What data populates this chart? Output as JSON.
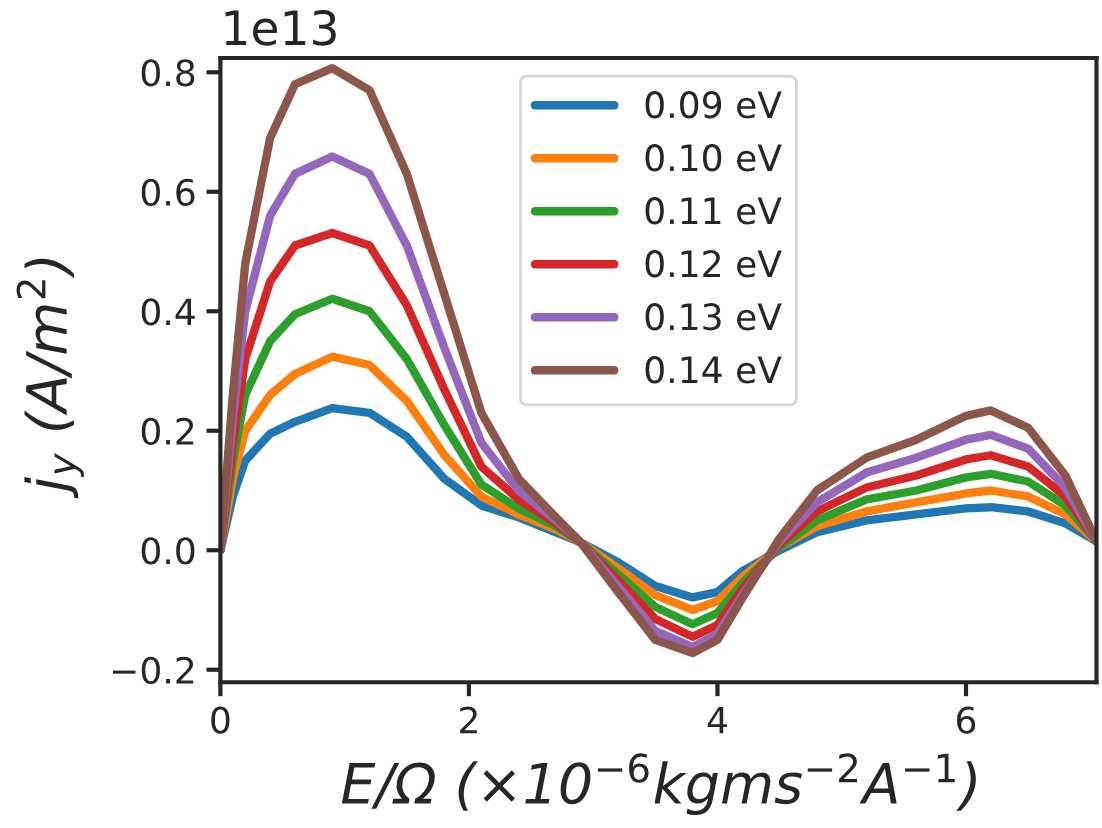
{
  "chart_data": {
    "type": "line",
    "xlabel": "E/Ω (×10$^{−6}$kgms$^{−2}$A$^{−1}$)",
    "ylabel": "j$_{y}$ (A/m$^{2}$)",
    "annotations": [
      "1e13"
    ],
    "x": [
      0,
      0.1,
      0.2,
      0.4,
      0.6,
      0.9,
      1.2,
      1.5,
      1.8,
      2.1,
      2.4,
      2.7,
      2.9,
      3.2,
      3.5,
      3.8,
      4.0,
      4.2,
      4.5,
      4.8,
      5.2,
      5.6,
      6.0,
      6.2,
      6.5,
      6.8,
      7.05
    ],
    "xlim": [
      0,
      7.05
    ],
    "xticks": [
      0,
      2,
      4,
      6
    ],
    "ylim": [
      -0.221,
      0.824
    ],
    "yticks": [
      {
        "value": -0.2,
        "label": "−0.2"
      },
      {
        "value": 0.0,
        "label": "0.0"
      },
      {
        "value": 0.2,
        "label": "0.2"
      },
      {
        "value": 0.4,
        "label": "0.4"
      },
      {
        "value": 0.6,
        "label": "0.6"
      },
      {
        "value": 0.8,
        "label": "0.8"
      }
    ],
    "grid": false,
    "legend": "top",
    "marker": "none",
    "line_style": "solid",
    "series": [
      {
        "name": "0.09 eV",
        "color": "#1f77b4",
        "values": [
          0,
          0.09,
          0.15,
          0.195,
          0.215,
          0.238,
          0.23,
          0.19,
          0.12,
          0.075,
          0.055,
          0.03,
          0.013,
          -0.02,
          -0.06,
          -0.079,
          -0.07,
          -0.035,
          0.0,
          0.03,
          0.05,
          0.06,
          0.07,
          0.072,
          0.065,
          0.045,
          0.015
        ]
      },
      {
        "name": "0.10 eV",
        "color": "#ff7f0e",
        "values": [
          0,
          0.12,
          0.2,
          0.26,
          0.295,
          0.324,
          0.31,
          0.25,
          0.16,
          0.09,
          0.06,
          0.035,
          0.013,
          -0.03,
          -0.075,
          -0.1,
          -0.085,
          -0.045,
          0.005,
          0.04,
          0.065,
          0.08,
          0.095,
          0.1,
          0.09,
          0.06,
          0.015
        ]
      },
      {
        "name": "0.11 eV",
        "color": "#2ca02c",
        "values": [
          0,
          0.15,
          0.26,
          0.35,
          0.395,
          0.421,
          0.4,
          0.32,
          0.21,
          0.11,
          0.07,
          0.04,
          0.013,
          -0.04,
          -0.095,
          -0.124,
          -0.105,
          -0.055,
          0.005,
          0.05,
          0.085,
          0.1,
          0.122,
          0.128,
          0.115,
          0.075,
          0.015
        ]
      },
      {
        "name": "0.12 eV",
        "color": "#d62728",
        "values": [
          0,
          0.18,
          0.32,
          0.45,
          0.51,
          0.531,
          0.51,
          0.41,
          0.27,
          0.14,
          0.085,
          0.045,
          0.013,
          -0.05,
          -0.115,
          -0.145,
          -0.125,
          -0.065,
          0.01,
          0.065,
          0.105,
          0.125,
          0.152,
          0.159,
          0.14,
          0.09,
          0.015
        ]
      },
      {
        "name": "0.13 eV",
        "color": "#9467bd",
        "values": [
          0,
          0.22,
          0.4,
          0.56,
          0.63,
          0.659,
          0.63,
          0.51,
          0.34,
          0.18,
          0.1,
          0.05,
          0.013,
          -0.06,
          -0.135,
          -0.162,
          -0.14,
          -0.075,
          0.015,
          0.08,
          0.13,
          0.155,
          0.185,
          0.193,
          0.17,
          0.105,
          0.015
        ]
      },
      {
        "name": "0.14 eV",
        "color": "#8c564b",
        "values": [
          0,
          0.26,
          0.48,
          0.69,
          0.78,
          0.807,
          0.77,
          0.63,
          0.43,
          0.23,
          0.12,
          0.055,
          0.013,
          -0.07,
          -0.15,
          -0.172,
          -0.15,
          -0.08,
          0.02,
          0.1,
          0.155,
          0.185,
          0.225,
          0.234,
          0.205,
          0.125,
          0.015
        ]
      }
    ]
  }
}
